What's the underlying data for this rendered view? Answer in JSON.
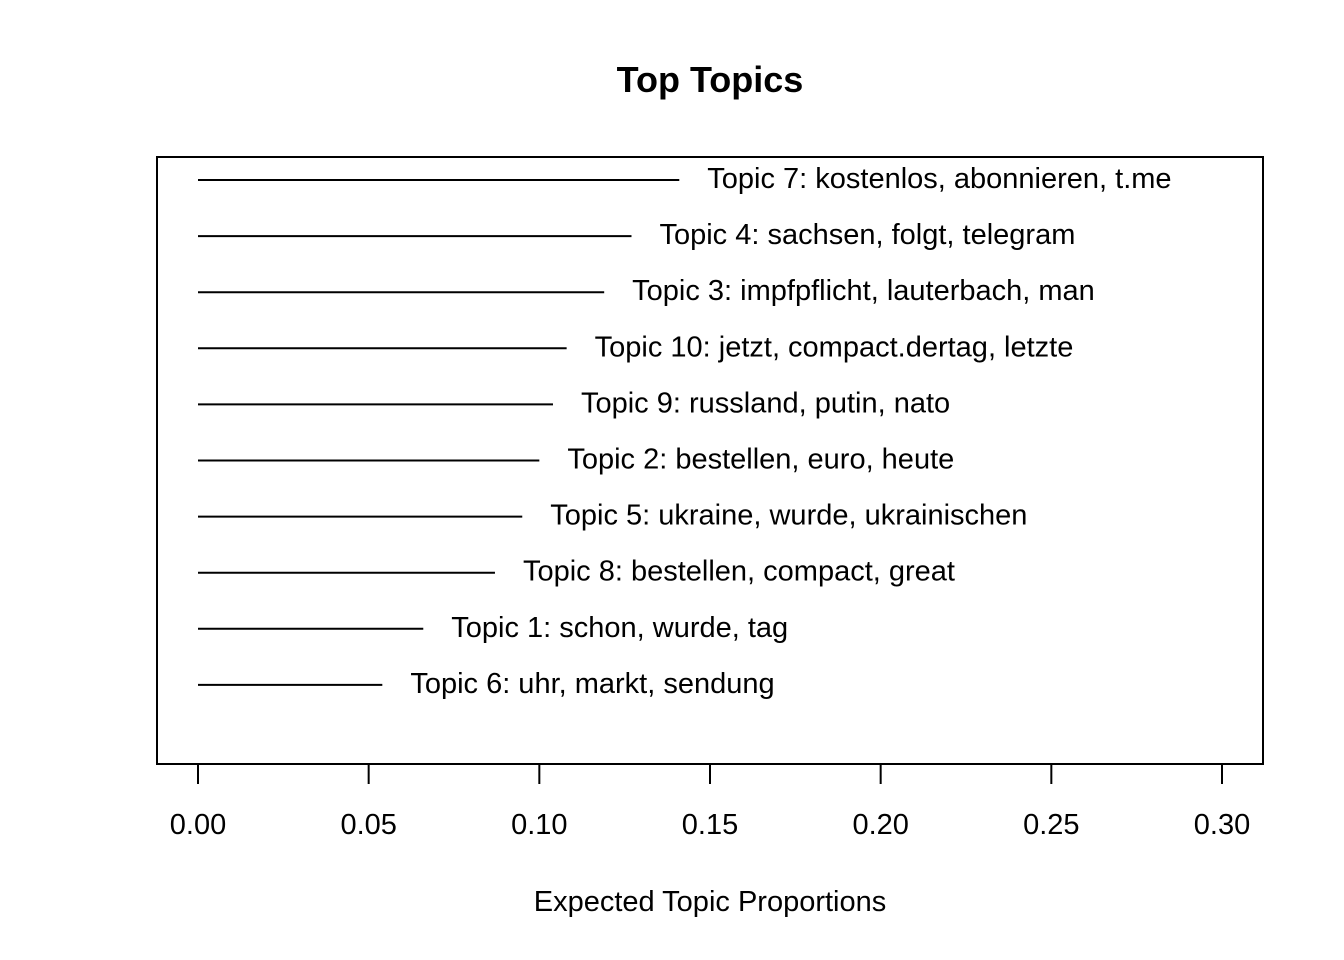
{
  "chart_data": {
    "type": "bar",
    "title": "Top Topics",
    "xlabel": "Expected Topic Proportions",
    "ylabel": "",
    "xlim": [
      0.0,
      0.3
    ],
    "xticks": [
      0.0,
      0.05,
      0.1,
      0.15,
      0.2,
      0.25,
      0.3
    ],
    "xtick_labels": [
      "0.00",
      "0.05",
      "0.10",
      "0.15",
      "0.20",
      "0.25",
      "0.30"
    ],
    "grid": false,
    "categories": [
      "Topic 7: kostenlos, abonnieren, t.me",
      "Topic 4: sachsen, folgt, telegram",
      "Topic 3: impfpflicht, lauterbach, man",
      "Topic 10: jetzt, compact.dertag, letzte",
      "Topic 9: russland, putin, nato",
      "Topic 2: bestellen, euro, heute",
      "Topic 5: ukraine, wurde, ukrainischen",
      "Topic 8: bestellen, compact, great",
      "Topic 1: schon, wurde, tag",
      "Topic 6: uhr, markt, sendung"
    ],
    "values": [
      0.141,
      0.127,
      0.119,
      0.108,
      0.104,
      0.1,
      0.095,
      0.087,
      0.066,
      0.054
    ]
  }
}
